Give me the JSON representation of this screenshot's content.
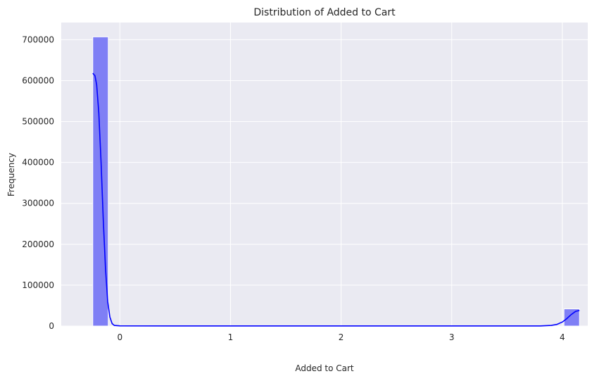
{
  "chart_data": {
    "type": "histogram",
    "title": "Distribution of Added to Cart",
    "xlabel": "Added to Cart",
    "ylabel": "Frequency",
    "xlim": [
      -0.53,
      4.23
    ],
    "ylim": [
      0,
      742000
    ],
    "xticks": [
      0,
      1,
      2,
      3,
      4
    ],
    "yticks": [
      0,
      100000,
      200000,
      300000,
      400000,
      500000,
      600000,
      700000
    ],
    "grid": true,
    "legend": "none",
    "bars": [
      {
        "x0": -0.245,
        "x1": -0.105,
        "value": 707000
      },
      {
        "x0": 4.015,
        "x1": 4.155,
        "value": 42000
      }
    ],
    "kde": [
      [
        -0.245,
        618000
      ],
      [
        -0.225,
        612000
      ],
      [
        -0.21,
        590000
      ],
      [
        -0.19,
        520000
      ],
      [
        -0.17,
        400000
      ],
      [
        -0.15,
        260000
      ],
      [
        -0.13,
        140000
      ],
      [
        -0.11,
        60000
      ],
      [
        -0.09,
        22000
      ],
      [
        -0.07,
        6000
      ],
      [
        -0.05,
        1500
      ],
      [
        0.0,
        500
      ],
      [
        0.5,
        300
      ],
      [
        1.0,
        300
      ],
      [
        2.0,
        300
      ],
      [
        3.0,
        300
      ],
      [
        3.8,
        400
      ],
      [
        3.9,
        1500
      ],
      [
        3.95,
        4000
      ],
      [
        4.0,
        10000
      ],
      [
        4.04,
        18000
      ],
      [
        4.08,
        28000
      ],
      [
        4.12,
        36000
      ],
      [
        4.155,
        38000
      ]
    ],
    "colors": {
      "bar_fill": "#7f7ff5",
      "bar_edge": "#ffffff",
      "kde": "#0000ff",
      "plot_bg": "#eaeaf2",
      "grid": "#ffffff"
    }
  }
}
